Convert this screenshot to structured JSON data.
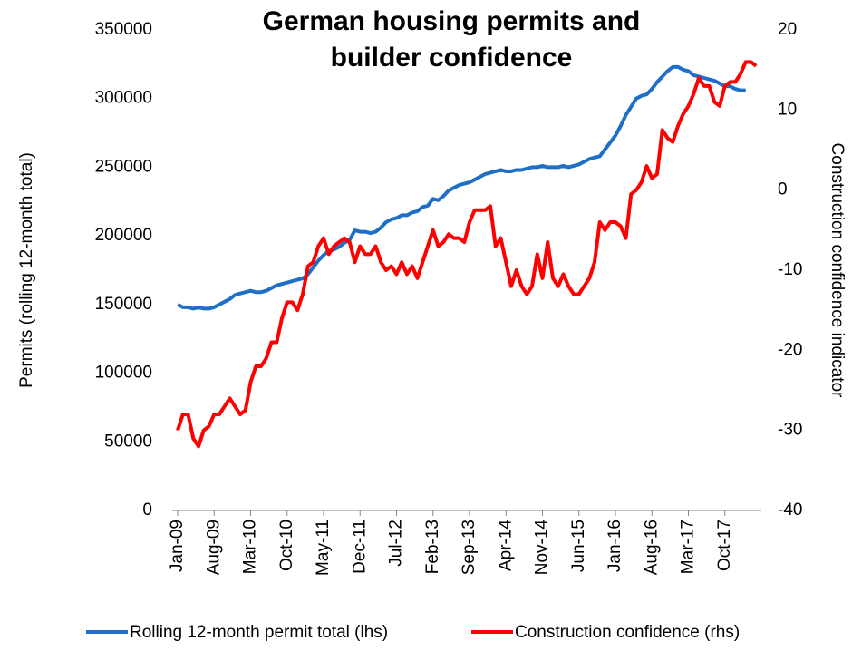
{
  "chart_data": {
    "type": "line",
    "title": "German housing permits and builder confidence",
    "y_label": "Permits (rolling 12-month total)",
    "y2_label": "Construction confidence indicator",
    "categories": [
      "Jan-09",
      null,
      null,
      null,
      null,
      null,
      null,
      "Aug-09",
      null,
      null,
      null,
      null,
      null,
      null,
      "Mar-10",
      null,
      null,
      null,
      null,
      null,
      null,
      "Oct-10",
      null,
      null,
      null,
      null,
      null,
      null,
      "May-11",
      null,
      null,
      null,
      null,
      null,
      null,
      "Dec-11",
      null,
      null,
      null,
      null,
      null,
      null,
      "Jul-12",
      null,
      null,
      null,
      null,
      null,
      null,
      "Feb-13",
      null,
      null,
      null,
      null,
      null,
      null,
      "Sep-13",
      null,
      null,
      null,
      null,
      null,
      null,
      "Apr-14",
      null,
      null,
      null,
      null,
      null,
      null,
      "Nov-14",
      null,
      null,
      null,
      null,
      null,
      null,
      "Jun-15",
      null,
      null,
      null,
      null,
      null,
      null,
      "Jan-16",
      null,
      null,
      null,
      null,
      null,
      null,
      "Aug-16",
      null,
      null,
      null,
      null,
      null,
      null,
      "Mar-17",
      null,
      null,
      null,
      null,
      null,
      null,
      "Oct-17",
      null,
      null,
      null,
      null,
      null,
      null
    ],
    "series": [
      {
        "name": "Rolling 12-month permit total (lhs)",
        "color": "#1f6fc9",
        "axis": "y",
        "values": [
          150000,
          148000,
          148000,
          147000,
          148000,
          147000,
          147000,
          148000,
          150000,
          152000,
          154000,
          157000,
          158000,
          159000,
          160000,
          159000,
          159000,
          160000,
          162000,
          164000,
          165000,
          166000,
          167000,
          168000,
          169000,
          172000,
          177000,
          182000,
          186000,
          189000,
          190000,
          192000,
          195000,
          197000,
          204000,
          203000,
          203000,
          202000,
          203000,
          206000,
          210000,
          212000,
          213000,
          215000,
          215000,
          217000,
          218000,
          221000,
          222000,
          227000,
          226000,
          229000,
          233000,
          235000,
          237000,
          238000,
          239000,
          241000,
          243000,
          245000,
          246000,
          247000,
          248000,
          247000,
          247000,
          248000,
          248000,
          249000,
          250000,
          250000,
          251000,
          250000,
          250000,
          250000,
          251000,
          250000,
          251000,
          252000,
          254000,
          256000,
          257000,
          258000,
          263000,
          268000,
          273000,
          280000,
          288000,
          294000,
          300000,
          302000,
          303000,
          307000,
          312000,
          316000,
          320000,
          323000,
          323000,
          321000,
          320000,
          317000,
          316000,
          315000,
          314000,
          313000,
          311000,
          309000,
          309000,
          307000,
          306000,
          306000,
          null,
          null
        ]
      },
      {
        "name": "Construction confidence (rhs)",
        "color": "#ff0000",
        "axis": "y2",
        "values": [
          -30,
          -28,
          -28,
          -31,
          -32,
          -30,
          -29.5,
          -28,
          -28,
          -27,
          -26,
          -27,
          -28,
          -27.5,
          -24,
          -22,
          -22,
          -21,
          -19,
          -19,
          -16,
          -14,
          -14,
          -15,
          -13,
          -9.5,
          -9,
          -7,
          -6,
          -8,
          -7,
          -6.5,
          -6,
          -6.5,
          -9,
          -7,
          -8,
          -8,
          -7,
          -9,
          -10,
          -9.5,
          -10.5,
          -9,
          -10.5,
          -9.5,
          -11,
          -9,
          -7,
          -5,
          -7,
          -6.5,
          -5.5,
          -6,
          -6,
          -6.5,
          -4,
          -2.5,
          -2.5,
          -2.5,
          -2,
          -7,
          -6,
          -9,
          -12,
          -10,
          -12,
          -13,
          -12,
          -8,
          -11,
          -6.5,
          -11,
          -12,
          -10.5,
          -12,
          -13,
          -13,
          -12,
          -11,
          -9,
          -4,
          -5,
          -4,
          -4,
          -4.5,
          -6,
          -0.5,
          0,
          1,
          3,
          1.5,
          2,
          7.5,
          6.5,
          6,
          8,
          9.5,
          10.5,
          12,
          14,
          13,
          13,
          11,
          10.5,
          13,
          13.5,
          13.5,
          14.5,
          16,
          16,
          15.5
        ]
      }
    ],
    "ylim": [
      0,
      350000
    ],
    "yticks": [
      0,
      50000,
      100000,
      150000,
      200000,
      250000,
      300000,
      350000
    ],
    "y2lim": [
      -40,
      20
    ],
    "y2ticks": [
      -40,
      -30,
      -20,
      -10,
      0,
      10,
      20
    ],
    "grid": false,
    "legend": "bottom"
  }
}
